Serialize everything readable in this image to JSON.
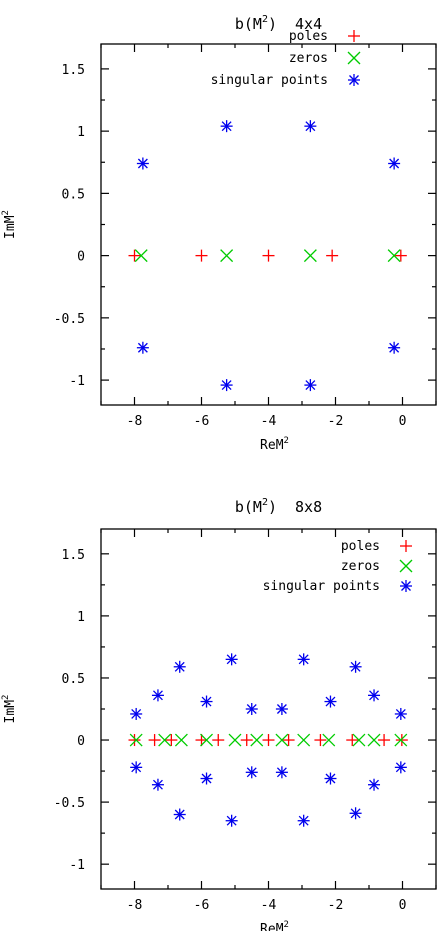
{
  "chart_data": [
    {
      "type": "scatter",
      "title_main": "b(M",
      "title_sup": "2",
      "title_rest": ")",
      "title_size": "4x4",
      "xlabel_main": "ReM",
      "xlabel_sup": "2",
      "ylabel_main": "ImM",
      "ylabel_sup": "2",
      "xlim": [
        -9,
        1
      ],
      "ylim": [
        -1.2,
        1.7
      ],
      "xticks": [
        -8,
        -6,
        -4,
        -2,
        0
      ],
      "xtick_labels": [
        "-8",
        "-6",
        "-4",
        "-2",
        "0"
      ],
      "xminor": [
        -9,
        -7,
        -5,
        -3,
        -1,
        1
      ],
      "yticks": [
        -1,
        -0.5,
        0,
        0.5,
        1,
        1.5
      ],
      "ytick_labels": [
        "-1",
        "-0.5",
        "0",
        "0.5",
        "1",
        "1.5"
      ],
      "yminor": [
        -0.75,
        -0.25,
        0.25,
        0.75,
        1.25
      ],
      "legend_position": "top-center",
      "series": [
        {
          "name": "poles",
          "marker": "plus",
          "color": "#ff0000",
          "points": [
            [
              -8.0,
              0
            ],
            [
              -6.0,
              0
            ],
            [
              -4.0,
              0
            ],
            [
              -2.1,
              0
            ],
            [
              -0.05,
              0
            ]
          ]
        },
        {
          "name": "zeros",
          "marker": "cross",
          "color": "#00cc00",
          "points": [
            [
              -7.8,
              0
            ],
            [
              -5.25,
              0
            ],
            [
              -2.75,
              0
            ],
            [
              -0.25,
              0
            ]
          ]
        },
        {
          "name": "singular points",
          "marker": "star",
          "color": "#0000ee",
          "points": [
            [
              -7.75,
              0.74
            ],
            [
              -5.25,
              1.04
            ],
            [
              -2.75,
              1.04
            ],
            [
              -0.25,
              0.74
            ],
            [
              -7.75,
              -0.74
            ],
            [
              -5.25,
              -1.04
            ],
            [
              -2.75,
              -1.04
            ],
            [
              -0.25,
              -0.74
            ]
          ]
        }
      ]
    },
    {
      "type": "scatter",
      "title_main": "b(M",
      "title_sup": "2",
      "title_rest": ")",
      "title_size": "8x8",
      "xlabel_main": "ReM",
      "xlabel_sup": "2",
      "ylabel_main": "ImM",
      "ylabel_sup": "2",
      "xlim": [
        -9,
        1
      ],
      "ylim": [
        -1.2,
        1.7
      ],
      "xticks": [
        -8,
        -6,
        -4,
        -2,
        0
      ],
      "xtick_labels": [
        "-8",
        "-6",
        "-4",
        "-2",
        "0"
      ],
      "xminor": [
        -9,
        -7,
        -5,
        -3,
        -1,
        1
      ],
      "yticks": [
        -1,
        -0.5,
        0,
        0.5,
        1,
        1.5
      ],
      "ytick_labels": [
        "-1",
        "-0.5",
        "0",
        "0.5",
        "1",
        "1.5"
      ],
      "yminor": [
        -0.75,
        -0.25,
        0.25,
        0.75,
        1.25
      ],
      "legend_position": "top-right",
      "series": [
        {
          "name": "poles",
          "marker": "plus",
          "color": "#ff0000",
          "points": [
            [
              -8.0,
              0
            ],
            [
              -7.4,
              0
            ],
            [
              -6.9,
              0
            ],
            [
              -6.0,
              0
            ],
            [
              -5.5,
              0
            ],
            [
              -4.65,
              0
            ],
            [
              -4.0,
              0
            ],
            [
              -3.4,
              0
            ],
            [
              -2.45,
              0
            ],
            [
              -1.5,
              0
            ],
            [
              -0.55,
              0
            ],
            [
              -0.02,
              0
            ]
          ]
        },
        {
          "name": "zeros",
          "marker": "cross",
          "color": "#00cc00",
          "points": [
            [
              -7.95,
              0
            ],
            [
              -7.1,
              0
            ],
            [
              -6.6,
              0
            ],
            [
              -5.85,
              0
            ],
            [
              -5.0,
              0
            ],
            [
              -4.35,
              0
            ],
            [
              -3.6,
              0
            ],
            [
              -2.95,
              0
            ],
            [
              -2.2,
              0
            ],
            [
              -1.3,
              0
            ],
            [
              -0.85,
              0
            ],
            [
              -0.05,
              0
            ]
          ]
        },
        {
          "name": "singular points",
          "marker": "star",
          "color": "#0000ee",
          "points": [
            [
              -7.95,
              0.21
            ],
            [
              -7.3,
              0.36
            ],
            [
              -6.65,
              0.59
            ],
            [
              -5.85,
              0.31
            ],
            [
              -5.1,
              0.65
            ],
            [
              -4.5,
              0.25
            ],
            [
              -3.6,
              0.25
            ],
            [
              -2.95,
              0.65
            ],
            [
              -2.15,
              0.31
            ],
            [
              -1.4,
              0.59
            ],
            [
              -0.85,
              0.36
            ],
            [
              -0.05,
              0.21
            ],
            [
              -7.95,
              -0.22
            ],
            [
              -7.3,
              -0.36
            ],
            [
              -6.65,
              -0.6
            ],
            [
              -5.85,
              -0.31
            ],
            [
              -5.1,
              -0.65
            ],
            [
              -4.5,
              -0.26
            ],
            [
              -3.6,
              -0.26
            ],
            [
              -2.95,
              -0.65
            ],
            [
              -2.15,
              -0.31
            ],
            [
              -1.4,
              -0.59
            ],
            [
              -0.85,
              -0.36
            ],
            [
              -0.05,
              -0.22
            ]
          ]
        }
      ]
    }
  ]
}
